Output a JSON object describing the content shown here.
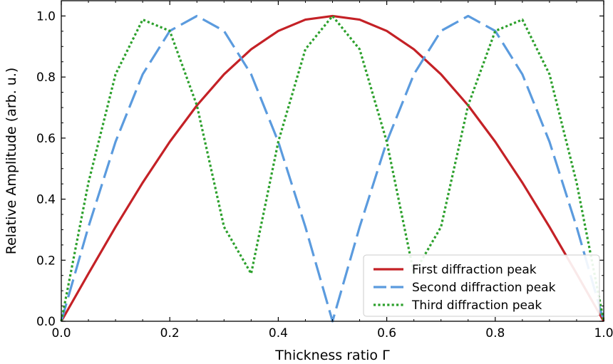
{
  "chart_data": {
    "type": "line",
    "xlabel": "Thickness ratio Γ",
    "ylabel": "Relative Amplitude (arb. u.)",
    "xlim": [
      0.0,
      1.0
    ],
    "ylim": [
      0.0,
      1.05
    ],
    "x_ticks": [
      "0.0",
      "0.2",
      "0.4",
      "0.6",
      "0.8",
      "1.0"
    ],
    "y_ticks": [
      "0.0",
      "0.2",
      "0.4",
      "0.6",
      "0.8",
      "1.0"
    ],
    "grid": false,
    "legend_position": "bottom-right",
    "x": [
      0.0,
      0.05,
      0.1,
      0.15,
      0.2,
      0.25,
      0.3,
      0.35,
      0.4,
      0.45,
      0.5,
      0.55,
      0.6,
      0.65,
      0.7,
      0.75,
      0.8,
      0.85,
      0.9,
      0.95,
      1.0
    ],
    "series": [
      {
        "name": "First diffraction peak",
        "color": "#c42126",
        "style": "solid",
        "values": [
          0.0,
          0.156,
          0.309,
          0.454,
          0.588,
          0.707,
          0.809,
          0.891,
          0.951,
          0.988,
          1.0,
          0.988,
          0.951,
          0.891,
          0.809,
          0.707,
          0.588,
          0.454,
          0.309,
          0.156,
          0.0
        ]
      },
      {
        "name": "Second diffraction peak",
        "color": "#5b9bde",
        "style": "dashed",
        "values": [
          0.0,
          0.309,
          0.588,
          0.809,
          0.951,
          1.0,
          0.951,
          0.809,
          0.588,
          0.309,
          0.0,
          0.309,
          0.588,
          0.809,
          0.951,
          1.0,
          0.951,
          0.809,
          0.588,
          0.309,
          0.0
        ]
      },
      {
        "name": "Third diffraction peak",
        "color": "#2ca02c",
        "style": "dotted",
        "values": [
          0.0,
          0.454,
          0.809,
          0.988,
          0.951,
          0.707,
          0.309,
          0.156,
          0.588,
          0.891,
          1.0,
          0.891,
          0.588,
          0.156,
          0.309,
          0.707,
          0.951,
          0.988,
          0.809,
          0.454,
          0.0
        ]
      }
    ]
  }
}
